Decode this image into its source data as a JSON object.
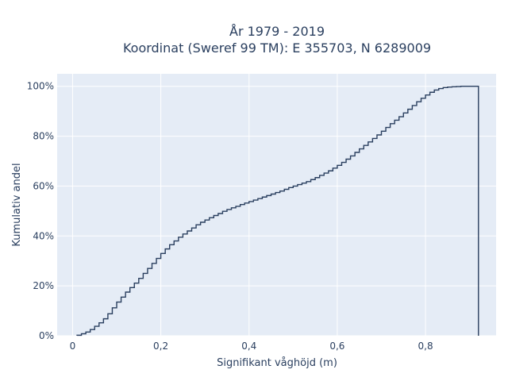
{
  "chart_data": {
    "type": "line",
    "subtype": "ecdf-step",
    "title_line1": "År 1979 - 2019",
    "title_line2": "Koordinat (Sweref 99 TM): E 355703, N 6289009",
    "xlabel": "Signifikant våghöjd (m)",
    "ylabel": "Kumulativ andel",
    "xlim": [
      -0.035,
      0.96
    ],
    "ylim": [
      0,
      1.05
    ],
    "x_ticks": [
      0,
      0.2,
      0.4,
      0.6,
      0.8
    ],
    "x_tick_labels": [
      "0",
      "0,2",
      "0,4",
      "0,6",
      "0,8"
    ],
    "y_ticks": [
      0,
      0.2,
      0.4,
      0.6,
      0.8,
      1.0
    ],
    "y_tick_labels": [
      "0%",
      "20%",
      "40%",
      "60%",
      "80%",
      "100%"
    ],
    "grid": true,
    "colors": {
      "line": "#2a3f5f",
      "plot_bg": "#e5ecf6",
      "grid": "#ffffff"
    },
    "series": [
      {
        "x": [
          0.01,
          0.02,
          0.03,
          0.04,
          0.05,
          0.06,
          0.07,
          0.08,
          0.09,
          0.1,
          0.11,
          0.12,
          0.13,
          0.14,
          0.15,
          0.16,
          0.17,
          0.18,
          0.19,
          0.2,
          0.21,
          0.22,
          0.23,
          0.24,
          0.25,
          0.26,
          0.27,
          0.28,
          0.29,
          0.3,
          0.31,
          0.32,
          0.33,
          0.34,
          0.35,
          0.36,
          0.37,
          0.38,
          0.39,
          0.4,
          0.41,
          0.42,
          0.43,
          0.44,
          0.45,
          0.46,
          0.47,
          0.48,
          0.49,
          0.5,
          0.51,
          0.52,
          0.53,
          0.54,
          0.55,
          0.56,
          0.57,
          0.58,
          0.59,
          0.6,
          0.61,
          0.62,
          0.63,
          0.64,
          0.65,
          0.66,
          0.67,
          0.68,
          0.69,
          0.7,
          0.71,
          0.72,
          0.73,
          0.74,
          0.75,
          0.76,
          0.77,
          0.78,
          0.79,
          0.8,
          0.81,
          0.82,
          0.83,
          0.84,
          0.85,
          0.86,
          0.87,
          0.88,
          0.89,
          0.9,
          0.92
        ],
        "y": [
          0.002,
          0.008,
          0.015,
          0.025,
          0.038,
          0.052,
          0.068,
          0.088,
          0.112,
          0.135,
          0.155,
          0.175,
          0.193,
          0.211,
          0.23,
          0.25,
          0.27,
          0.29,
          0.31,
          0.33,
          0.348,
          0.365,
          0.38,
          0.395,
          0.408,
          0.42,
          0.432,
          0.445,
          0.455,
          0.464,
          0.473,
          0.482,
          0.49,
          0.499,
          0.506,
          0.513,
          0.519,
          0.526,
          0.532,
          0.538,
          0.544,
          0.55,
          0.556,
          0.562,
          0.568,
          0.574,
          0.58,
          0.587,
          0.594,
          0.6,
          0.606,
          0.612,
          0.618,
          0.626,
          0.634,
          0.643,
          0.652,
          0.661,
          0.672,
          0.683,
          0.695,
          0.708,
          0.721,
          0.735,
          0.749,
          0.763,
          0.777,
          0.791,
          0.805,
          0.82,
          0.835,
          0.85,
          0.864,
          0.878,
          0.893,
          0.908,
          0.923,
          0.938,
          0.952,
          0.965,
          0.976,
          0.985,
          0.991,
          0.995,
          0.997,
          0.998,
          0.999,
          1.0,
          1.0,
          1.0,
          1.0
        ]
      }
    ]
  }
}
